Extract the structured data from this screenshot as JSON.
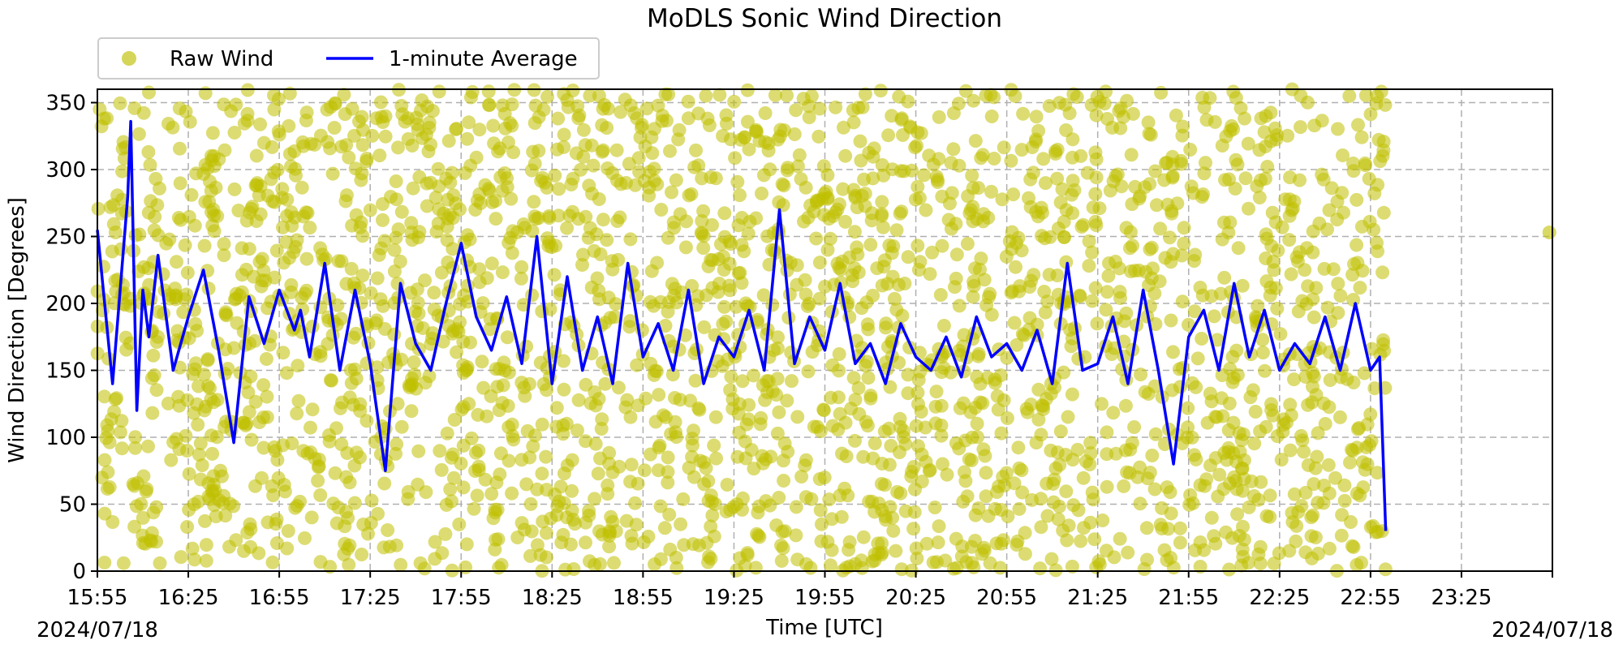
{
  "chart_data": {
    "type": "scatter",
    "title": "MoDLS Sonic Wind Direction",
    "xlabel": "Time [UTC]",
    "ylabel": "Wind Direction [Degrees]",
    "x_start_label": "2024/07/18",
    "x_end_label": "2024/07/18",
    "xlim": [
      "15:55",
      "23:55"
    ],
    "ylim": [
      0,
      360
    ],
    "x_ticks": [
      "15:55",
      "16:25",
      "16:55",
      "17:25",
      "17:55",
      "18:25",
      "18:55",
      "19:25",
      "19:55",
      "20:25",
      "20:55",
      "21:25",
      "21:55",
      "22:25",
      "22:55",
      "23:25"
    ],
    "y_ticks": [
      0,
      50,
      100,
      150,
      200,
      250,
      300,
      350
    ],
    "grid": true,
    "legend_position": "top-left, above plot",
    "series": [
      {
        "name": "Raw Wind",
        "kind": "scatter",
        "color": "#bfbf00",
        "time_range": [
          "15:55",
          "23:55"
        ],
        "value_range": [
          0,
          360
        ],
        "outlier": {
          "x": "23:54",
          "y": 253
        }
      },
      {
        "name": "1-minute Average",
        "kind": "line",
        "color": "#0000ff",
        "x": [
          "15:55",
          "16:00",
          "16:05",
          "16:06",
          "16:08",
          "16:10",
          "16:12",
          "16:15",
          "16:20",
          "16:25",
          "16:30",
          "16:35",
          "16:40",
          "16:45",
          "16:50",
          "16:55",
          "17:00",
          "17:02",
          "17:05",
          "17:10",
          "17:15",
          "17:20",
          "17:25",
          "17:30",
          "17:35",
          "17:40",
          "17:45",
          "17:50",
          "17:55",
          "18:00",
          "18:05",
          "18:10",
          "18:15",
          "18:20",
          "18:25",
          "18:30",
          "18:35",
          "18:40",
          "18:45",
          "18:50",
          "18:55",
          "19:00",
          "19:05",
          "19:10",
          "19:15",
          "19:20",
          "19:25",
          "19:30",
          "19:35",
          "19:40",
          "19:45",
          "19:50",
          "19:55",
          "20:00",
          "20:05",
          "20:10",
          "20:15",
          "20:20",
          "20:25",
          "20:30",
          "20:35",
          "20:40",
          "20:45",
          "20:50",
          "20:55",
          "21:00",
          "21:05",
          "21:10",
          "21:15",
          "21:20",
          "21:25",
          "21:30",
          "21:35",
          "21:40",
          "21:45",
          "21:50",
          "21:55",
          "22:00",
          "22:05",
          "22:10",
          "22:15",
          "22:20",
          "22:25",
          "22:30",
          "22:35",
          "22:40",
          "22:45",
          "22:50",
          "22:55",
          "22:58",
          "23:00"
        ],
        "values": [
          255,
          140,
          280,
          336,
          120,
          210,
          175,
          236,
          150,
          190,
          225,
          165,
          96,
          205,
          170,
          210,
          180,
          195,
          160,
          230,
          150,
          210,
          155,
          75,
          215,
          170,
          150,
          200,
          245,
          190,
          165,
          205,
          155,
          250,
          140,
          220,
          150,
          190,
          140,
          230,
          160,
          185,
          150,
          210,
          140,
          175,
          160,
          195,
          150,
          270,
          155,
          190,
          165,
          215,
          155,
          170,
          140,
          185,
          160,
          150,
          175,
          145,
          190,
          160,
          170,
          150,
          180,
          140,
          230,
          150,
          155,
          190,
          140,
          210,
          150,
          80,
          175,
          195,
          150,
          215,
          160,
          195,
          150,
          170,
          155,
          190,
          150,
          200,
          150,
          160,
          30
        ]
      }
    ]
  }
}
